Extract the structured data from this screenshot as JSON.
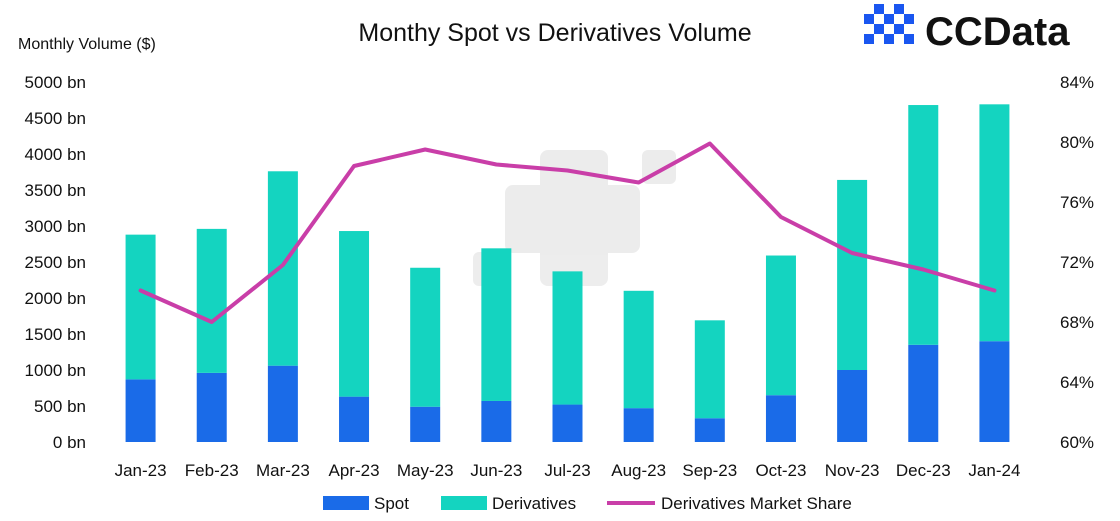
{
  "brand": {
    "name": "CCData",
    "accent": "#1a56f0"
  },
  "chart_data": {
    "type": "bar",
    "title": "Monthy Spot vs Derivatives Volume",
    "ylabel": "Monthly Volume ($)",
    "y_ticks": [
      "0 bn",
      "500 bn",
      "1000 bn",
      "1500 bn",
      "2000 bn",
      "2500 bn",
      "3000 bn",
      "3500 bn",
      "4000 bn",
      "4500 bn",
      "5000 bn"
    ],
    "y2_ticks": [
      "60%",
      "64%",
      "68%",
      "72%",
      "76%",
      "80%",
      "84%"
    ],
    "ylim": [
      0,
      5000
    ],
    "y2lim": [
      60,
      84
    ],
    "categories": [
      "Jan-23",
      "Feb-23",
      "Mar-23",
      "Apr-23",
      "May-23",
      "Jun-23",
      "Jul-23",
      "Aug-23",
      "Sep-23",
      "Oct-23",
      "Nov-23",
      "Dec-23",
      "Jan-24"
    ],
    "series": [
      {
        "name": "Spot",
        "kind": "bar",
        "color": "#1a6be8",
        "values": [
          870,
          960,
          1060,
          630,
          490,
          570,
          520,
          470,
          330,
          650,
          1000,
          1350,
          1400
        ]
      },
      {
        "name": "Derivatives",
        "kind": "bar",
        "color": "#14d4c0",
        "values": [
          2010,
          2000,
          2700,
          2300,
          1930,
          2120,
          1850,
          1630,
          1360,
          1940,
          2640,
          3330,
          3290
        ]
      },
      {
        "name": "Derivatives Market Share",
        "kind": "line",
        "axis": "right",
        "color": "#c93ea8",
        "values": [
          70.1,
          68.0,
          71.8,
          78.4,
          79.5,
          78.5,
          78.1,
          77.3,
          79.9,
          75.0,
          72.6,
          71.5,
          70.1
        ]
      }
    ],
    "legend_position": "bottom",
    "grid": false
  }
}
